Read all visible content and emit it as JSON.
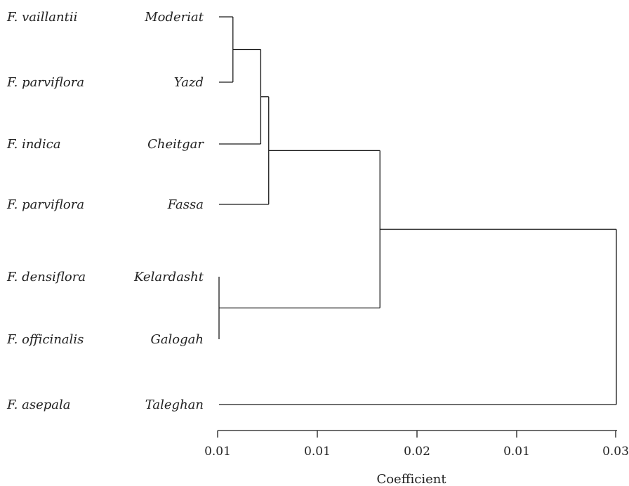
{
  "chart_data": {
    "type": "dendrogram",
    "xlabel": "Coefficient",
    "ticks": [
      "0.01",
      "0.01",
      "0.02",
      "0.01",
      "0.03"
    ],
    "leaves": [
      {
        "species": "F. vaillantii",
        "location": "Moderiat"
      },
      {
        "species": "F. parviflora",
        "location": "Yazd"
      },
      {
        "species": "F. indica",
        "location": "Cheitgar"
      },
      {
        "species": "F. parviflora",
        "location": "Fassa"
      },
      {
        "species": "F. densiflora",
        "location": "Kelardasht"
      },
      {
        "species": "F. officinalis",
        "location": "Galogah"
      },
      {
        "species": "F. asepala",
        "location": "Taleghan"
      }
    ],
    "merges": [
      {
        "members": [
          "Moderiat",
          "Yazd"
        ],
        "height": 0.0007
      },
      {
        "members": [
          "Moderiat",
          "Yazd",
          "Cheitgar"
        ],
        "height": 0.0021
      },
      {
        "members": [
          "Moderiat",
          "Yazd",
          "Cheitgar",
          "Fassa"
        ],
        "height": 0.0025
      },
      {
        "members": [
          "Kelardasht",
          "Galogah"
        ],
        "height": 0.0
      },
      {
        "members": [
          "Moderiat",
          "Yazd",
          "Cheitgar",
          "Fassa",
          "Kelardasht",
          "Galogah"
        ],
        "height": 0.0081
      },
      {
        "members": [
          "Moderiat",
          "Yazd",
          "Cheitgar",
          "Fassa",
          "Kelardasht",
          "Galogah",
          "Taleghan"
        ],
        "height": 0.02
      }
    ],
    "xlim": [
      0,
      0.02
    ]
  }
}
